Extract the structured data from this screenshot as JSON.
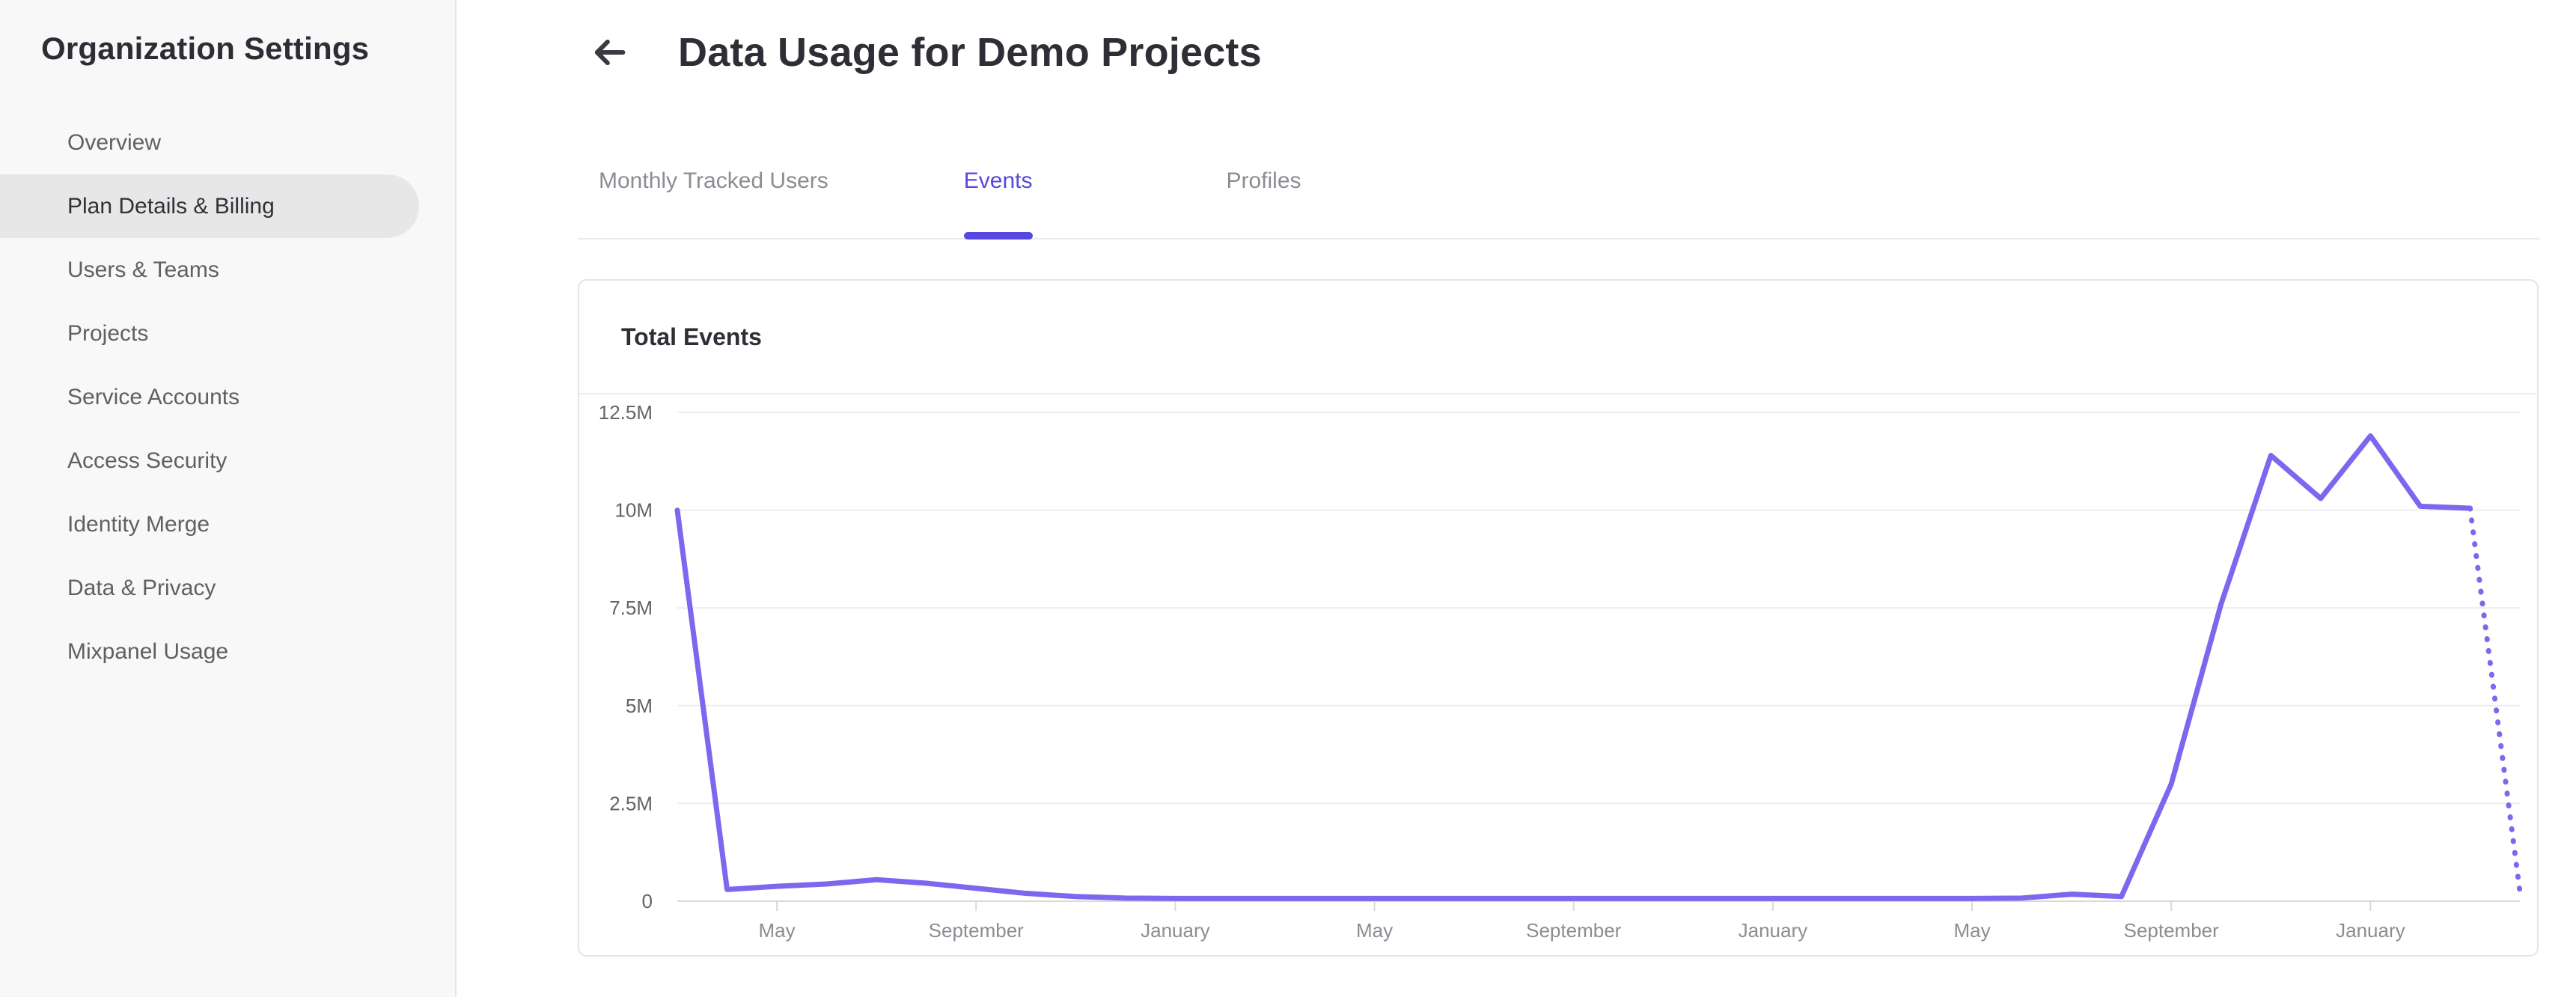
{
  "colors": {
    "accent": "#5748e0",
    "chart_line": "#7b68ee",
    "sidebar_bg": "#f8f8f8",
    "sidebar_active_bg": "#e7e7e8",
    "text_dark": "#2e2e36",
    "text_gray": "#5f5f66",
    "text_muted": "#8c8c93"
  },
  "sidebar": {
    "title": "Organization Settings",
    "items": [
      {
        "label": "Overview",
        "active": false
      },
      {
        "label": "Plan Details & Billing",
        "active": true
      },
      {
        "label": "Users & Teams",
        "active": false
      },
      {
        "label": "Projects",
        "active": false
      },
      {
        "label": "Service Accounts",
        "active": false
      },
      {
        "label": "Access Security",
        "active": false
      },
      {
        "label": "Identity Merge",
        "active": false
      },
      {
        "label": "Data & Privacy",
        "active": false
      },
      {
        "label": "Mixpanel Usage",
        "active": false
      }
    ]
  },
  "header": {
    "title": "Data Usage for Demo Projects",
    "back_icon": "left-arrow-icon"
  },
  "tabs": [
    {
      "label": "Monthly Tracked Users",
      "active": false
    },
    {
      "label": "Events",
      "active": true
    },
    {
      "label": "Profiles",
      "active": false
    }
  ],
  "card": {
    "title": "Total Events"
  },
  "chart_data": {
    "type": "line",
    "title": "Total Events",
    "grid": true,
    "legend": false,
    "x_axis": {
      "granularity": "monthly",
      "total_months": 37,
      "tick_labels": [
        "May",
        "September",
        "January",
        "May",
        "September",
        "January",
        "May",
        "September",
        "January"
      ],
      "tick_month_indices": [
        2,
        6,
        10,
        14,
        18,
        22,
        26,
        30,
        34
      ]
    },
    "y_axis": {
      "tick_labels": [
        "12.5M",
        "10M",
        "7.5M",
        "5M",
        "2.5M",
        "0"
      ],
      "tick_values_millions": [
        12.5,
        10,
        7.5,
        5,
        2.5,
        0
      ],
      "max_millions": 12.5,
      "ylim": [
        0,
        12500000
      ]
    },
    "series": [
      {
        "name": "Total Events",
        "color": "#7b68ee",
        "unit": "millions of events",
        "values_millions": [
          10,
          0.3,
          0.38,
          0.44,
          0.55,
          0.46,
          0.33,
          0.2,
          0.12,
          0.08,
          0.07,
          0.07,
          0.07,
          0.07,
          0.07,
          0.07,
          0.07,
          0.07,
          0.07,
          0.07,
          0.07,
          0.07,
          0.07,
          0.07,
          0.07,
          0.07,
          0.07,
          0.08,
          0.18,
          0.12,
          3.0,
          7.6,
          11.4,
          10.3,
          11.9,
          10.1,
          10.05
        ],
        "projection": {
          "months_ahead": 1,
          "end_value_millions": 0.25,
          "style": "dotted"
        }
      }
    ]
  }
}
